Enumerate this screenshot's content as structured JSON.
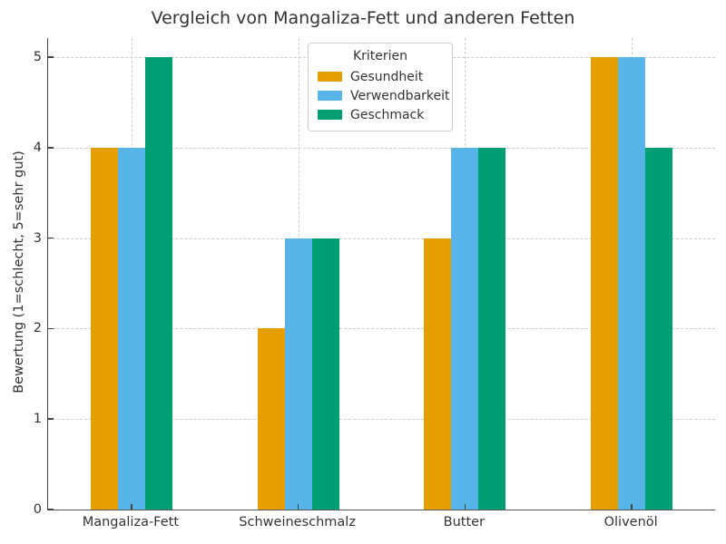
{
  "chart_data": {
    "type": "bar",
    "title": "Vergleich von Mangaliza-Fett und anderen Fetten",
    "xlabel": "",
    "ylabel": "Bewertung (1=schlecht, 5=sehr gut)",
    "categories": [
      "Mangaliza-Fett",
      "Schweineschmalz",
      "Butter",
      "Olivenöl"
    ],
    "series": [
      {
        "name": "Gesundheit",
        "color": "#E69F00",
        "values": [
          4,
          2,
          3,
          5
        ]
      },
      {
        "name": "Verwendbarkeit",
        "color": "#56B4E9",
        "values": [
          4,
          3,
          4,
          5
        ]
      },
      {
        "name": "Geschmack",
        "color": "#009E73",
        "values": [
          5,
          3,
          4,
          4
        ]
      }
    ],
    "legend_title": "Kriterien",
    "legend_position": "upper center",
    "yticks": [
      0,
      1,
      2,
      3,
      4,
      5
    ],
    "ylim": [
      0,
      5.2
    ],
    "grid": true,
    "grid_style": "dashed",
    "colors": {
      "text": "#333333",
      "spine": "#444444",
      "grid": "#cccccc",
      "legend_border": "#cccccc",
      "background": "#ffffff"
    }
  }
}
